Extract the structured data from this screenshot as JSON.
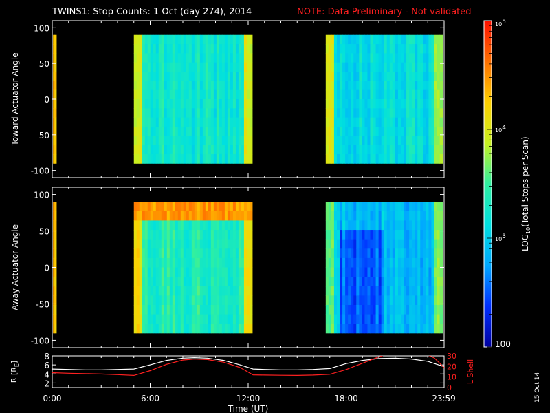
{
  "title": {
    "main": "TWINS1: Stop Counts:  1 Oct (day 274), 2014",
    "note": "NOTE: Data Preliminary - Not validated"
  },
  "stamp": "15 Oct 14",
  "colorbar": {
    "label": "LOG",
    "label_sub": "10",
    "label_rest": "(Total Stops per Scan)",
    "ticks": [
      {
        "value": 100000,
        "text": "10",
        "sup": "5"
      },
      {
        "value": 10000,
        "text": "10",
        "sup": "4"
      },
      {
        "value": 1000,
        "text": "10",
        "sup": "3"
      },
      {
        "value": 100,
        "text": "100",
        "sup": ""
      }
    ],
    "range": [
      100,
      100000
    ],
    "scale": "log",
    "stops": [
      "#0000a0",
      "#0030ff",
      "#00a8ff",
      "#00e0e0",
      "#30f0a0",
      "#c8f020",
      "#ffd000",
      "#ff7000",
      "#ff1000"
    ]
  },
  "chart_data": [
    {
      "type": "heatmap",
      "ylabel": "Toward Actuator Angle",
      "ylim": [
        -110,
        110
      ],
      "yticks": [
        "100",
        "50",
        "0",
        "-50",
        "-100"
      ],
      "ytick_values": [
        100,
        50,
        0,
        -50,
        -100
      ],
      "xlim": [
        0,
        24
      ],
      "data_blocks": [
        {
          "t_start": 0.05,
          "t_end": 0.25,
          "level": 0.78
        },
        {
          "t_start": 5.0,
          "t_end": 12.25,
          "level": 0.42
        },
        {
          "t_start": 16.75,
          "t_end": 23.9,
          "level": 0.38
        }
      ]
    },
    {
      "type": "heatmap",
      "ylabel": "Away Actuator Angle",
      "ylim": [
        -110,
        110
      ],
      "yticks": [
        "100",
        "50",
        "0",
        "-50",
        "-100"
      ],
      "ytick_values": [
        100,
        50,
        0,
        -50,
        -100
      ],
      "xlim": [
        0,
        24
      ],
      "data_blocks": [
        {
          "t_start": 0.05,
          "t_end": 0.25,
          "level": 0.78
        },
        {
          "t_start": 5.0,
          "t_end": 12.25,
          "level": 0.45
        },
        {
          "t_start": 16.75,
          "t_end": 23.9,
          "level": 0.3
        }
      ]
    },
    {
      "type": "line",
      "ylabel": "R [R",
      "ylabel_sub": "E",
      "ylabel_end": "]",
      "ylim": [
        1,
        8
      ],
      "yticks": [
        "8",
        "6",
        "4",
        "2"
      ],
      "ytick_values": [
        8,
        6,
        4,
        2
      ],
      "y2label": "L Shell",
      "y2lim": [
        0,
        30
      ],
      "y2ticks": [
        "30",
        "20",
        "10",
        "0"
      ],
      "y2tick_values": [
        30,
        20,
        10,
        0
      ],
      "xlabel": "Time (UT)",
      "xticks": [
        "0:00",
        "6:00",
        "12:00",
        "18:00",
        "23:59"
      ],
      "xtick_values": [
        0,
        6,
        12,
        18,
        23.98
      ],
      "xlim": [
        0,
        24
      ],
      "series": [
        {
          "color": "#ffffff",
          "x": [
            0,
            1,
            2,
            3,
            4,
            5,
            6,
            7,
            8,
            8.7,
            9.5,
            10.5,
            11.5,
            12.3,
            13,
            14,
            15,
            16,
            17,
            18,
            19,
            20,
            21,
            22,
            23,
            24
          ],
          "y": [
            5.1,
            5.0,
            4.9,
            4.9,
            5.0,
            5.1,
            6.0,
            7.0,
            7.5,
            7.6,
            7.5,
            7.0,
            6.0,
            5.1,
            5.0,
            4.9,
            4.9,
            5.0,
            5.2,
            6.3,
            7.0,
            7.4,
            7.5,
            7.3,
            6.8,
            5.6
          ]
        },
        {
          "color": "#ff2020",
          "axis": "right",
          "x": [
            0,
            1,
            2,
            3,
            4,
            5,
            6,
            7,
            8,
            8.7,
            9.5,
            10.5,
            11.5,
            12.3,
            13,
            14,
            15,
            16,
            17,
            18,
            19,
            20,
            20.6,
            22.8,
            23.4,
            24
          ],
          "y": [
            14,
            13.5,
            13.2,
            12.8,
            12.2,
            11.5,
            16,
            22,
            26,
            27,
            26.5,
            24,
            19,
            12,
            11.8,
            11.6,
            11.5,
            11.8,
            12.5,
            17,
            23,
            29,
            32,
            32,
            28,
            19
          ]
        }
      ]
    }
  ]
}
